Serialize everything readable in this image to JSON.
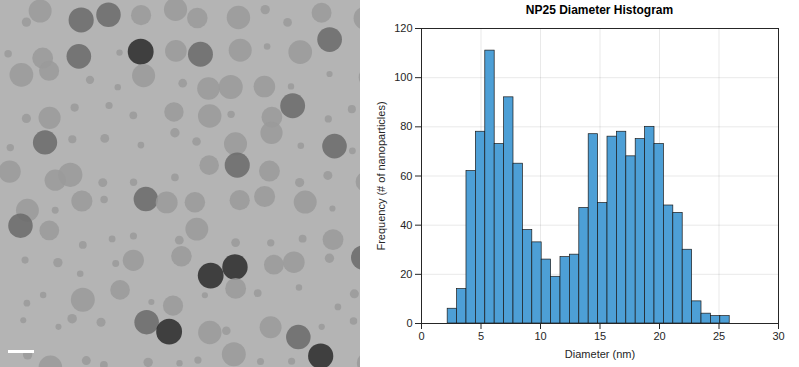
{
  "chart_data": {
    "type": "histogram",
    "title": "NP25 Diameter Histogram",
    "x_label": "Diameter (nm)",
    "y_label": "Frequency (# of nanoparticles)",
    "bins": [
      2.2,
      2.99,
      3.78,
      4.57,
      5.36,
      6.15,
      6.94,
      7.73,
      8.52,
      9.31,
      10.1,
      10.89,
      11.68,
      12.47,
      13.26,
      14.05,
      14.84,
      15.63,
      16.42,
      17.21,
      18.0,
      18.79,
      19.58,
      20.37,
      21.16,
      21.95,
      22.74,
      23.53,
      24.32,
      25.11,
      25.9
    ],
    "counts": [
      6,
      14,
      62,
      78,
      111,
      73,
      92,
      65,
      38,
      33,
      26,
      19,
      27,
      28,
      47,
      77,
      49,
      76,
      78,
      68,
      75,
      80,
      73,
      48,
      45,
      30,
      9,
      4,
      3,
      3
    ],
    "color": "#4d9fd6",
    "xlim": [
      0,
      30
    ],
    "xticks": [
      0,
      5,
      10,
      15,
      20,
      25,
      30
    ],
    "ylim": [
      0,
      120
    ],
    "yticks": [
      0,
      20,
      40,
      60,
      80,
      100,
      120
    ],
    "grid": true
  }
}
